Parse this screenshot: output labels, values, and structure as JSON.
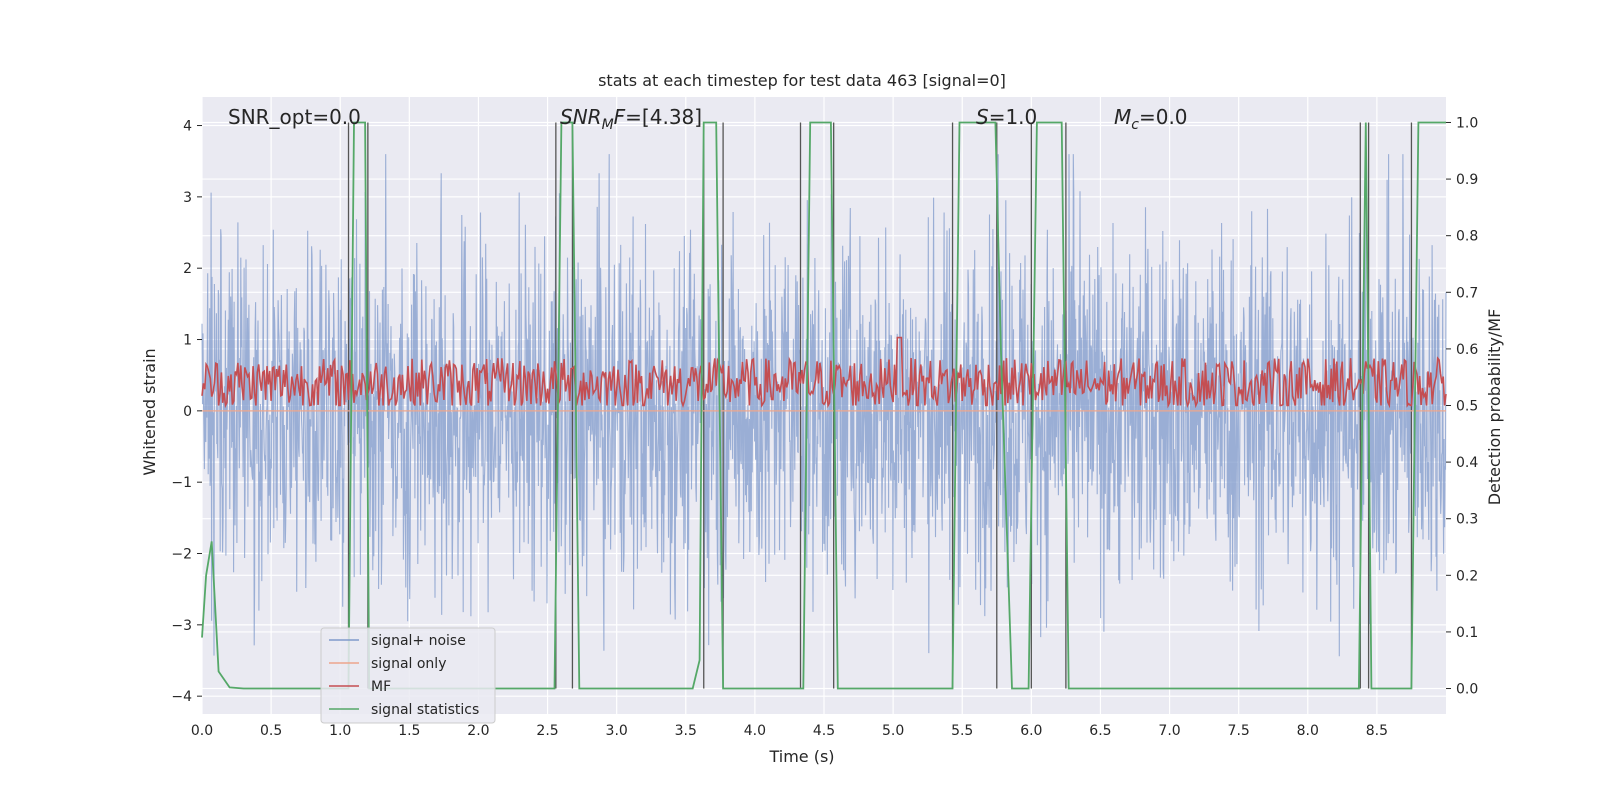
{
  "chart_data": {
    "type": "line",
    "title": "stats at each timestep for test data 463 [signal=0]",
    "xlabel": "Time (s)",
    "ylabel_left": "Whitened strain",
    "ylabel_right": "Detection probability/MF",
    "xlim": [
      0,
      9.0
    ],
    "ylim_left": [
      -4.25,
      4.4
    ],
    "ylim_right": [
      -0.045,
      1.045
    ],
    "x_ticks": [
      0.0,
      0.5,
      1.0,
      1.5,
      2.0,
      2.5,
      3.0,
      3.5,
      4.0,
      4.5,
      5.0,
      5.5,
      6.0,
      6.5,
      7.0,
      7.5,
      8.0,
      8.5
    ],
    "x_tick_labels": [
      "0.0",
      "0.5",
      "1.0",
      "1.5",
      "2.0",
      "2.5",
      "3.0",
      "3.5",
      "4.0",
      "4.5",
      "5.0",
      "5.5",
      "6.0",
      "6.5",
      "7.0",
      "7.5",
      "8.0",
      "8.5"
    ],
    "y_left_ticks": [
      4,
      3,
      2,
      1,
      0,
      -1,
      -2,
      -3,
      -4
    ],
    "y_left_tick_labels": [
      "4",
      "3",
      "2",
      "1",
      "0",
      "−1",
      "−2",
      "−3",
      "−4"
    ],
    "y_right_ticks": [
      1.0,
      0.9,
      0.8,
      0.7,
      0.6,
      0.5,
      0.4,
      0.3,
      0.2,
      0.1,
      0.0
    ],
    "y_right_tick_labels": [
      "1.0",
      "0.9",
      "0.8",
      "0.7",
      "0.6",
      "0.5",
      "0.4",
      "0.3",
      "0.2",
      "0.1",
      "0.0"
    ],
    "grid": true,
    "legend_position": "lower-left",
    "legend": [
      {
        "label": "signal+ noise",
        "color": "#7f9acb"
      },
      {
        "label": "signal only",
        "color": "#eda58c"
      },
      {
        "label": "MF",
        "color": "#c44e52"
      },
      {
        "label": "signal statistics",
        "color": "#55a868"
      }
    ],
    "annotations": {
      "snr_opt": "SNR_opt=0.0",
      "snr_mf_sym": "SNR",
      "snr_mf_sub": "M",
      "snr_mf_sym2": "F",
      "snr_mf_val": "=[4.38]",
      "s_sym": "S",
      "s_val": "=1.0",
      "mc_sym": "M",
      "mc_sub": "c",
      "mc_val": "=0.0"
    },
    "series": [
      {
        "name": "signal+ noise",
        "axis": "left",
        "style": "dense noise band",
        "typical_range": [
          -2.0,
          2.0
        ],
        "extreme_range": [
          -3.6,
          3.6
        ]
      },
      {
        "name": "signal only",
        "axis": "left",
        "values_constant": 0.0
      },
      {
        "name": "MF",
        "axis": "right",
        "baseline": 0.53,
        "typical_range": [
          0.5,
          0.62
        ],
        "peak": {
          "x": 5.05,
          "y": 0.62
        }
      },
      {
        "name": "signal statistics",
        "axis": "right",
        "x": [
          0.0,
          0.03,
          0.07,
          0.12,
          0.2,
          0.3,
          1.06,
          1.1,
          1.14,
          1.18,
          1.21,
          1.26,
          2.55,
          2.6,
          2.64,
          2.68,
          2.73,
          3.55,
          3.6,
          3.63,
          3.67,
          3.72,
          3.77,
          3.82,
          4.3,
          4.35,
          4.4,
          4.55,
          4.6,
          4.65,
          5.43,
          5.48,
          5.5,
          5.74,
          5.78,
          5.86,
          5.98,
          6.04,
          6.22,
          6.27,
          6.32,
          8.37,
          8.42,
          8.46,
          8.5,
          8.75,
          8.8,
          8.84,
          9.0
        ],
        "y": [
          0.09,
          0.2,
          0.26,
          0.03,
          0.002,
          0.0,
          0.0,
          1.0,
          1.0,
          1.0,
          0.0,
          0.0,
          0.0,
          1.0,
          1.0,
          1.0,
          0.0,
          0.0,
          0.05,
          1.0,
          1.0,
          1.0,
          0.0,
          0.0,
          0.0,
          0.0,
          1.0,
          1.0,
          0.0,
          0.0,
          0.0,
          1.0,
          1.0,
          1.0,
          0.6,
          0.0,
          0.0,
          1.0,
          1.0,
          0.0,
          0.0,
          0.0,
          1.0,
          0.0,
          0.0,
          0.0,
          1.0,
          1.0,
          1.0
        ]
      }
    ],
    "event_lines_x": [
      1.06,
      1.2,
      2.56,
      2.68,
      3.63,
      3.77,
      4.33,
      4.57,
      5.43,
      5.75,
      6.0,
      6.25,
      8.38,
      8.44,
      8.75
    ]
  }
}
